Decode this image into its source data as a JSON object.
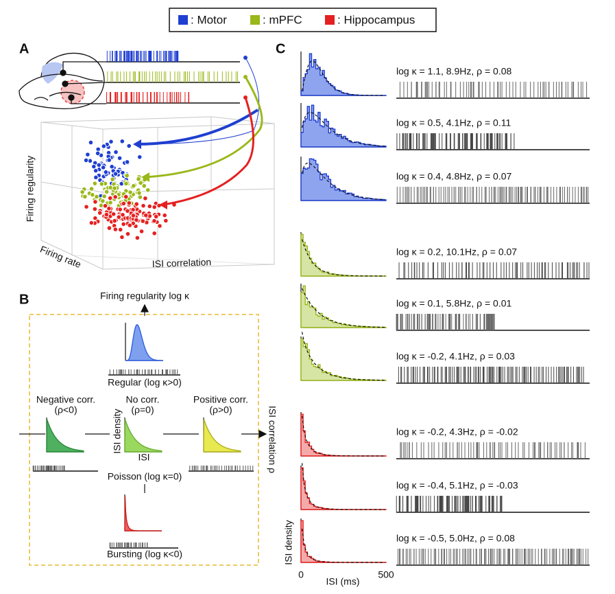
{
  "legend": [
    ": Motor",
    ": mPFC",
    ": Hippocampus"
  ],
  "panel_a": {
    "label": "A",
    "y_axis": "Firing regularity",
    "x_axis": "Firing rate",
    "z_axis": "ISI correlation"
  },
  "panel_b": {
    "label": "B",
    "top_axis": "Firing regularity log κ",
    "regular": "Regular (log κ>0)",
    "negative": [
      "Negative corr.",
      "(ρ<0)"
    ],
    "none": [
      "No corr.",
      "(ρ=0)"
    ],
    "positive": [
      "Positive corr.",
      "(ρ>0)"
    ],
    "density_axis": "ISI density",
    "isi_axis": "ISI",
    "poisson": "Poisson (log κ=0)",
    "bursting": "Bursting (log κ<0)",
    "right_axis": "ISI correlation ρ"
  },
  "panel_c": {
    "label": "C",
    "rows": [
      "log κ = 1.1, 8.9Hz, ρ = 0.08",
      "log κ = 0.5, 4.1Hz, ρ = 0.11",
      "log κ = 0.4, 4.8Hz, ρ = 0.07",
      "log κ = 0.2, 10.1Hz, ρ = 0.07",
      "log κ = 0.1, 5.8Hz, ρ = 0.01",
      "log κ = -0.2, 4.1Hz, ρ = 0.03",
      "log κ = -0.2, 4.3Hz, ρ = -0.02",
      "log κ = -0.4, 5.1Hz, ρ = -0.03",
      "log κ = -0.5, 5.0Hz, ρ = 0.08"
    ],
    "y_axis": "ISI density",
    "x_ticks": [
      "0",
      "500"
    ],
    "x_axis": "ISI (ms)"
  }
}
